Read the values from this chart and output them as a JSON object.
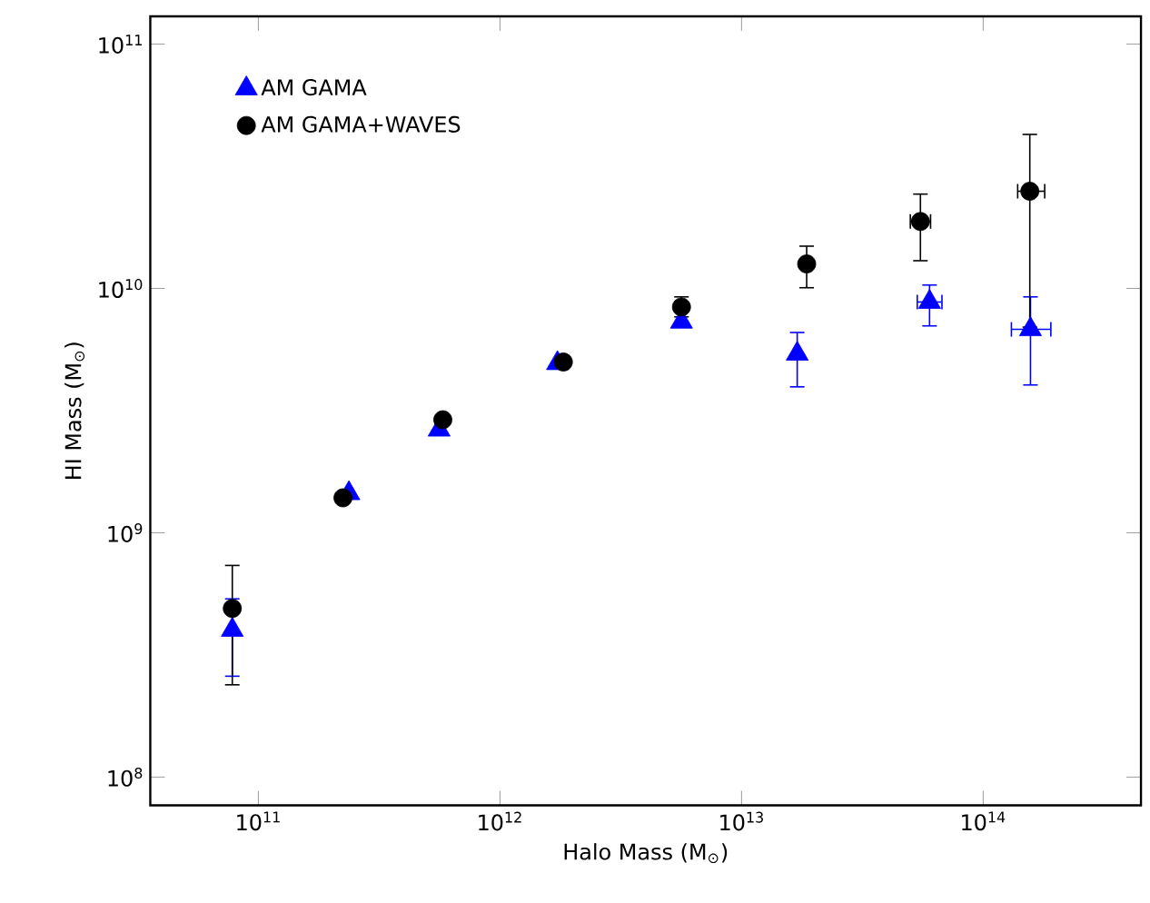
{
  "chart_data": {
    "type": "scatter",
    "xlabel": "Halo Mass (M$_{⊙}$)",
    "ylabel": "HI Mass (M$_{⊙}$)",
    "log": "xy",
    "xlim": [
      35700000000.0,
      450000000000000.0
    ],
    "ylim": [
      76600000.0,
      130000000000.0
    ],
    "xticks": [
      {
        "value": 100000000000.0,
        "label": "10$^{11}$"
      },
      {
        "value": 1000000000000.0,
        "label": "10$^{12}$"
      },
      {
        "value": 10000000000000.0,
        "label": "10$^{13}$"
      },
      {
        "value": 100000000000000.0,
        "label": "10$^{14}$"
      }
    ],
    "yticks": [
      {
        "value": 100000000.0,
        "label": "10$^{8}$"
      },
      {
        "value": 1000000000.0,
        "label": "10$^{9}$"
      },
      {
        "value": 10000000000.0,
        "label": "10$^{10}$"
      },
      {
        "value": 100000000000.0,
        "label": "10$^{11}$"
      }
    ],
    "grid": false,
    "legend": "top left",
    "series": [
      {
        "name": "AM GAMA",
        "color": "#0000ff",
        "marker": "triangle",
        "x": [
          78000000000.0,
          237000000000.0,
          560000000000.0,
          1730000000000.0,
          5640000000000.0,
          17000000000000.0,
          60000000000000.0,
          157000000000000.0
        ],
        "values": [
          400000000.0,
          1450000000.0,
          2640000000.0,
          4940000000.0,
          7300000000.0,
          5400000000.0,
          8800000000.0,
          6800000000.0
        ],
        "errors": [
          [
            257000000.0,
            540000000.0
          ],
          null,
          null,
          null,
          null,
          [
            3930000000.0,
            6650000000.0
          ],
          [
            6980000000.0,
            10400000000.0
          ],
          [
            4000000000.0,
            9300000000.0
          ]
        ],
        "xerrors": [
          null,
          null,
          null,
          null,
          null,
          null,
          [
            53000000000000.0,
            68000000000000.0
          ],
          [
            130000000000000.0,
            192000000000000.0
          ]
        ]
      },
      {
        "name": "AM GAMA+WAVES",
        "color": "#000000",
        "marker": "circle",
        "x": [
          78000000000.0,
          224000000000.0,
          580000000000.0,
          1830000000000.0,
          5640000000000.0,
          18600000000000.0,
          55000000000000.0,
          156000000000000.0
        ],
        "values": [
          490000000.0,
          1390000000.0,
          2900000000.0,
          5000000000.0,
          8400000000.0,
          12600000000.0,
          18800000000.0,
          25000000000.0
        ],
        "errors": [
          [
            237000000.0,
            740000000.0
          ],
          null,
          null,
          null,
          [
            7600000000.0,
            9300000000.0
          ],
          [
            10000000000.0,
            15000000000.0
          ],
          [
            12900000000.0,
            24500000000.0
          ],
          [
            6900000000.0,
            43000000000.0
          ]
        ],
        "xerrors": [
          null,
          null,
          null,
          null,
          null,
          null,
          [
            49600000000000.0,
            61000000000000.0
          ],
          [
            138000000000000.0,
            181000000000000.0
          ]
        ]
      }
    ]
  }
}
